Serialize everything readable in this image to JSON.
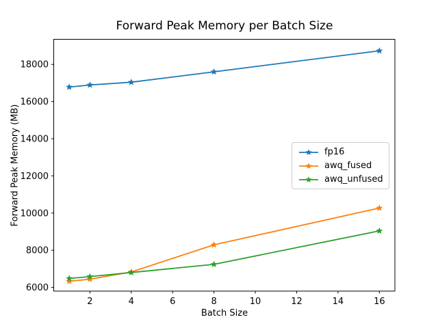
{
  "chart_data": {
    "type": "line",
    "title": "Forward Peak Memory per Batch Size",
    "xlabel": "Batch Size",
    "ylabel": "Forward Peak Memory (MB)",
    "x": [
      1,
      2,
      4,
      8,
      16
    ],
    "series": [
      {
        "name": "fp16",
        "color": "#1f77b4",
        "values": [
          16780,
          16890,
          17040,
          17600,
          18730
        ]
      },
      {
        "name": "awq_fused",
        "color": "#ff7f0e",
        "values": [
          6330,
          6440,
          6830,
          8290,
          10270
        ]
      },
      {
        "name": "awq_unfused",
        "color": "#2ca02c",
        "values": [
          6480,
          6580,
          6800,
          7240,
          9040
        ]
      }
    ],
    "marker": "star",
    "xticks": [
      2,
      4,
      6,
      8,
      10,
      12,
      14,
      16
    ],
    "yticks": [
      6000,
      8000,
      10000,
      12000,
      14000,
      16000,
      18000
    ],
    "xlim": [
      0.25,
      16.75
    ],
    "ylim": [
      5800,
      19350
    ],
    "grid": false,
    "legend_position": "center-right",
    "text_color": "#000000",
    "spine_color": "#000000",
    "background_color": "#ffffff"
  }
}
